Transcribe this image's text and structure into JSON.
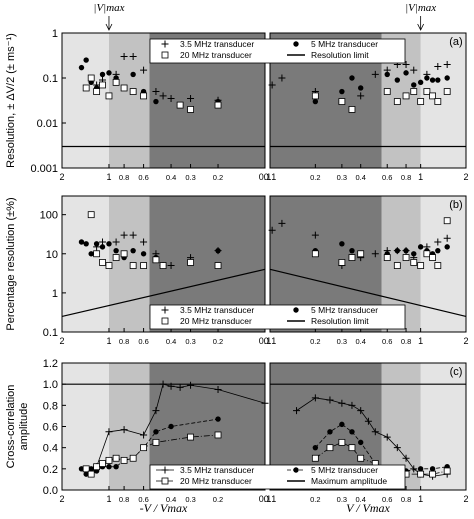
{
  "figure": {
    "top_marker_left": "|V|max",
    "top_marker_right": "|V|max",
    "xlabel_left": "-V / Vmax",
    "xlabel_right": "V / Vmax"
  },
  "chart_data": [
    {
      "type": "scatter",
      "panel_label": "(a)",
      "ylabel": "Resolution, ± ΔV/2 (± ms⁻¹)",
      "yscale": "log",
      "ylim": [
        0.001,
        1
      ],
      "yticks": [
        "0.001",
        "0.01",
        "0.1",
        "1"
      ],
      "xscale": "log",
      "xlim_left": [
        2,
        0.1
      ],
      "xlim_right": [
        0.1,
        2
      ],
      "xticks": [
        "2",
        "1",
        "0.8",
        "0.6",
        "0.4",
        "0.3",
        "0.2",
        "0.1"
      ],
      "legend": [
        "3.5 MHz transducer",
        "5 MHz transducer",
        "20 MHz transducer",
        "Resolution limit"
      ],
      "reference_line": {
        "name": "Resolution limit",
        "y": 0.003
      },
      "series": [
        {
          "name": "3.5 MHz transducer",
          "marker": "plus",
          "left": [
            [
              1.2,
              0.07
            ],
            [
              1.1,
              0.09
            ],
            [
              0.9,
              0.12
            ],
            [
              0.8,
              0.3
            ],
            [
              0.7,
              0.3
            ],
            [
              0.6,
              0.15
            ],
            [
              0.5,
              0.05
            ],
            [
              0.45,
              0.04
            ],
            [
              0.4,
              0.035
            ],
            [
              0.3,
              0.035
            ],
            [
              0.2,
              0.032
            ],
            [
              0.09,
              0.07
            ]
          ],
          "right": [
            [
              0.12,
              0.1
            ],
            [
              0.2,
              0.05
            ],
            [
              0.4,
              0.04
            ],
            [
              0.5,
              0.12
            ],
            [
              0.6,
              0.15
            ],
            [
              0.7,
              0.2
            ],
            [
              0.8,
              0.2
            ],
            [
              0.9,
              0.15
            ],
            [
              1.1,
              0.12
            ],
            [
              1.3,
              0.18
            ],
            [
              1.5,
              0.2
            ]
          ]
        },
        {
          "name": "5 MHz transducer",
          "marker": "dot",
          "left": [
            [
              1.5,
              0.17
            ],
            [
              1.4,
              0.25
            ],
            [
              1.3,
              0.08
            ],
            [
              1.2,
              0.06
            ],
            [
              1.1,
              0.12
            ],
            [
              1.0,
              0.13
            ],
            [
              0.9,
              0.1
            ],
            [
              0.8,
              0.06
            ],
            [
              0.7,
              0.12
            ],
            [
              0.6,
              0.05
            ],
            [
              0.5,
              0.03
            ],
            [
              0.2,
              0.03
            ]
          ],
          "right": [
            [
              0.2,
              0.03
            ],
            [
              0.3,
              0.05
            ],
            [
              0.35,
              0.1
            ],
            [
              0.4,
              0.06
            ],
            [
              0.6,
              0.12
            ],
            [
              0.7,
              0.09
            ],
            [
              0.8,
              0.13
            ],
            [
              0.9,
              0.07
            ],
            [
              1.0,
              0.08
            ],
            [
              1.1,
              0.1
            ],
            [
              1.2,
              0.09
            ],
            [
              1.3,
              0.09
            ],
            [
              1.5,
              0.1
            ]
          ]
        },
        {
          "name": "20 MHz transducer",
          "marker": "open-square",
          "left": [
            [
              1.4,
              0.06
            ],
            [
              1.3,
              0.1
            ],
            [
              1.2,
              0.05
            ],
            [
              1.1,
              0.07
            ],
            [
              1.0,
              0.04
            ],
            [
              0.9,
              0.08
            ],
            [
              0.8,
              0.06
            ],
            [
              0.7,
              0.05
            ],
            [
              0.6,
              0.04
            ],
            [
              0.35,
              0.025
            ],
            [
              0.3,
              0.02
            ],
            [
              0.2,
              0.025
            ]
          ],
          "right": [
            [
              0.2,
              0.04
            ],
            [
              0.3,
              0.03
            ],
            [
              0.35,
              0.02
            ],
            [
              0.6,
              0.05
            ],
            [
              0.7,
              0.03
            ],
            [
              0.8,
              0.04
            ],
            [
              0.9,
              0.05
            ],
            [
              1.0,
              0.03
            ],
            [
              1.1,
              0.05
            ],
            [
              1.2,
              0.04
            ],
            [
              1.3,
              0.03
            ],
            [
              1.5,
              0.05
            ]
          ]
        }
      ]
    },
    {
      "type": "scatter",
      "panel_label": "(b)",
      "ylabel": "Percentage resolution (±%)",
      "yscale": "log",
      "ylim": [
        0.1,
        300
      ],
      "yticks": [
        "0.1",
        "1",
        "10",
        "100"
      ],
      "xscale": "log",
      "xlim_left": [
        2,
        0.1
      ],
      "xlim_right": [
        0.1,
        2
      ],
      "xticks": [
        "2",
        "1",
        "0.8",
        "0.6",
        "0.4",
        "0.3",
        "0.2",
        "0.1"
      ],
      "legend": [
        "3.5 MHz transducer",
        "5 MHz transducer",
        "20 MHz transducer",
        "Resolution limit"
      ],
      "reference_line": {
        "name": "Resolution limit",
        "from": [
          2,
          0.25
        ],
        "to": [
          0.1,
          4
        ]
      },
      "series": [
        {
          "name": "3.5 MHz transducer",
          "marker": "plus",
          "left": [
            [
              1.2,
              15
            ],
            [
              1.1,
              20
            ],
            [
              0.9,
              20
            ],
            [
              0.8,
              30
            ],
            [
              0.7,
              30
            ],
            [
              0.6,
              20
            ],
            [
              0.5,
              10
            ],
            [
              0.45,
              5
            ],
            [
              0.4,
              5
            ],
            [
              0.3,
              8
            ],
            [
              0.2,
              12
            ],
            [
              0.09,
              40
            ]
          ],
          "right": [
            [
              0.12,
              60
            ],
            [
              0.2,
              30
            ],
            [
              0.3,
              5
            ],
            [
              0.4,
              8
            ],
            [
              0.5,
              10
            ],
            [
              0.6,
              12
            ],
            [
              0.7,
              12
            ],
            [
              0.8,
              12
            ],
            [
              0.9,
              8
            ],
            [
              1.1,
              15
            ],
            [
              1.3,
              20
            ],
            [
              1.5,
              25
            ]
          ]
        },
        {
          "name": "5 MHz transducer",
          "marker": "dot",
          "left": [
            [
              1.5,
              20
            ],
            [
              1.4,
              18
            ],
            [
              1.3,
              10
            ],
            [
              1.2,
              18
            ],
            [
              1.1,
              15
            ],
            [
              1.0,
              18
            ],
            [
              0.9,
              12
            ],
            [
              0.8,
              8
            ],
            [
              0.7,
              12
            ],
            [
              0.6,
              10
            ],
            [
              0.5,
              8
            ],
            [
              0.2,
              12
            ]
          ],
          "right": [
            [
              0.2,
              12
            ],
            [
              0.3,
              18
            ],
            [
              0.35,
              12
            ],
            [
              0.4,
              10
            ],
            [
              0.6,
              10
            ],
            [
              0.7,
              12
            ],
            [
              0.8,
              12
            ],
            [
              0.9,
              10
            ],
            [
              1.0,
              15
            ],
            [
              1.1,
              12
            ],
            [
              1.2,
              10
            ],
            [
              1.3,
              12
            ],
            [
              1.5,
              15
            ]
          ]
        },
        {
          "name": "20 MHz transducer",
          "marker": "open-square",
          "left": [
            [
              1.3,
              100
            ],
            [
              1.2,
              10
            ],
            [
              1.1,
              6
            ],
            [
              1.0,
              5
            ],
            [
              0.9,
              8
            ],
            [
              0.8,
              10
            ],
            [
              0.7,
              5
            ],
            [
              0.6,
              5
            ],
            [
              0.5,
              7
            ],
            [
              0.45,
              5
            ],
            [
              0.3,
              6
            ],
            [
              0.2,
              5
            ]
          ],
          "right": [
            [
              0.2,
              10
            ],
            [
              0.3,
              6
            ],
            [
              0.35,
              8
            ],
            [
              0.4,
              10
            ],
            [
              0.6,
              8
            ],
            [
              0.7,
              5
            ],
            [
              0.8,
              8
            ],
            [
              0.9,
              6
            ],
            [
              1.0,
              5
            ],
            [
              1.1,
              10
            ],
            [
              1.2,
              8
            ],
            [
              1.3,
              5
            ],
            [
              1.5,
              70
            ]
          ]
        }
      ]
    },
    {
      "type": "line",
      "panel_label": "(c)",
      "ylabel": "Cross-correlation amplitude",
      "yscale": "linear",
      "ylim": [
        0,
        1.2
      ],
      "yticks": [
        "0.0",
        "0.2",
        "0.4",
        "0.6",
        "0.8",
        "1.0",
        "1.2"
      ],
      "xscale": "log",
      "xlim_left": [
        2,
        0.1
      ],
      "xlim_right": [
        0.1,
        2
      ],
      "xticks": [
        "2",
        "1",
        "0.8",
        "0.6",
        "0.4",
        "0.3",
        "0.2",
        "0.1"
      ],
      "legend": [
        "3.5 MHz transducer",
        "5 MHz transducer",
        "20 MHz transducer",
        "Maximum amplitude"
      ],
      "reference_line": {
        "name": "Maximum amplitude",
        "y": 1.0
      },
      "series": [
        {
          "name": "3.5 MHz transducer",
          "marker": "plus",
          "left": [
            [
              1.2,
              0.22
            ],
            [
              1.0,
              0.55
            ],
            [
              0.8,
              0.57
            ],
            [
              0.6,
              0.52
            ],
            [
              0.5,
              0.75
            ],
            [
              0.45,
              1.0
            ],
            [
              0.4,
              0.98
            ],
            [
              0.35,
              0.97
            ],
            [
              0.3,
              0.99
            ],
            [
              0.2,
              0.95
            ],
            [
              0.1,
              0.82
            ]
          ],
          "right": [
            [
              0.15,
              0.75
            ],
            [
              0.2,
              0.87
            ],
            [
              0.25,
              0.85
            ],
            [
              0.3,
              0.82
            ],
            [
              0.35,
              0.8
            ],
            [
              0.4,
              0.75
            ],
            [
              0.45,
              0.65
            ],
            [
              0.5,
              0.55
            ],
            [
              0.6,
              0.5
            ],
            [
              0.7,
              0.4
            ],
            [
              0.8,
              0.3
            ],
            [
              0.9,
              0.2
            ],
            [
              1.0,
              0.15
            ],
            [
              1.2,
              0.13
            ],
            [
              1.5,
              0.15
            ]
          ]
        },
        {
          "name": "5 MHz transducer",
          "marker": "dot",
          "left": [
            [
              1.5,
              0.2
            ],
            [
              1.4,
              0.15
            ],
            [
              1.3,
              0.2
            ],
            [
              1.2,
              0.18
            ],
            [
              1.1,
              0.22
            ],
            [
              1.0,
              0.22
            ],
            [
              0.9,
              0.22
            ],
            [
              0.8,
              0.28
            ],
            [
              0.7,
              0.3
            ],
            [
              0.6,
              0.4
            ],
            [
              0.5,
              0.55
            ],
            [
              0.4,
              0.6
            ],
            [
              0.2,
              0.67
            ]
          ],
          "right": [
            [
              0.2,
              0.4
            ],
            [
              0.25,
              0.55
            ],
            [
              0.3,
              0.62
            ],
            [
              0.35,
              0.55
            ],
            [
              0.4,
              0.45
            ],
            [
              0.5,
              0.25
            ],
            [
              0.6,
              0.2
            ],
            [
              0.7,
              0.2
            ],
            [
              0.8,
              0.18
            ],
            [
              1.0,
              0.2
            ],
            [
              1.2,
              0.2
            ],
            [
              1.5,
              0.22
            ]
          ]
        },
        {
          "name": "20 MHz transducer",
          "marker": "open-square",
          "left": [
            [
              1.4,
              0.2
            ],
            [
              1.3,
              0.15
            ],
            [
              1.2,
              0.22
            ],
            [
              1.1,
              0.25
            ],
            [
              1.0,
              0.28
            ],
            [
              0.9,
              0.3
            ],
            [
              0.8,
              0.28
            ],
            [
              0.7,
              0.3
            ],
            [
              0.6,
              0.4
            ],
            [
              0.5,
              0.45
            ],
            [
              0.3,
              0.5
            ],
            [
              0.2,
              0.52
            ]
          ],
          "right": [
            [
              0.2,
              0.3
            ],
            [
              0.25,
              0.4
            ],
            [
              0.3,
              0.45
            ],
            [
              0.35,
              0.4
            ],
            [
              0.4,
              0.3
            ],
            [
              0.5,
              0.25
            ],
            [
              0.6,
              0.2
            ],
            [
              0.7,
              0.18
            ],
            [
              0.8,
              0.15
            ],
            [
              1.0,
              0.15
            ],
            [
              1.2,
              0.15
            ],
            [
              1.5,
              0.18
            ]
          ]
        }
      ]
    }
  ]
}
